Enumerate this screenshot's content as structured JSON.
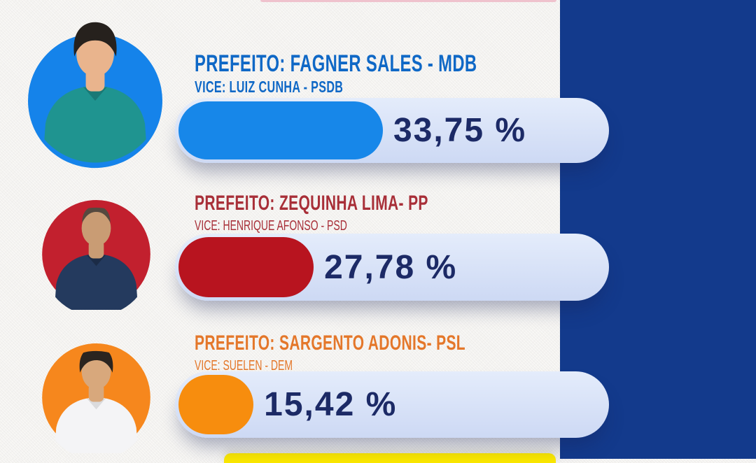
{
  "layout_colors": {
    "background": "#f3f2ef",
    "accent_band": "#133a8c",
    "top_strip": "#efc2cd",
    "bottom_banner": "#fbe800",
    "bar_track": "#d5e0f7",
    "percent_text": "#1c2a66"
  },
  "candidates": [
    {
      "title": "PREFEITO: FAGNER SALES - MDB",
      "vice": "VICE: LUIZ CUNHA - PSDB",
      "percent_label": "33,75 %",
      "percent_value": 33.75,
      "bar_color": "#1787e9",
      "title_color": "#0f68c6",
      "circle_color": "#1583ea",
      "shirt_color": "#1f9490",
      "hair_color": "#26211d",
      "skin_color": "#e9b48d"
    },
    {
      "title": "PREFEITO: ZEQUINHA LIMA- PP",
      "vice": "VICE: HENRIQUE AFONSO - PSD",
      "percent_label": "27,78 %",
      "percent_value": 27.78,
      "bar_color": "#b8141f",
      "title_color": "#a82f38",
      "circle_color": "#c2202e",
      "shirt_color": "#243a5e",
      "hair_color": "#55493f",
      "skin_color": "#c99c74"
    },
    {
      "title": "PREFEITO: SARGENTO ADONIS- PSL",
      "vice": "VICE: SUELEN - DEM",
      "percent_label": "15,42 %",
      "percent_value": 15.42,
      "bar_color": "#f78d0e",
      "title_color": "#e4772a",
      "circle_color": "#f6871d",
      "shirt_color": "#f4f4f6",
      "hair_color": "#2a241f",
      "skin_color": "#d8a87c"
    }
  ],
  "chart_data": {
    "type": "bar",
    "orientation": "horizontal",
    "title": "",
    "categories": [
      "PREFEITO: FAGNER SALES - MDB (VICE: LUIZ CUNHA - PSDB)",
      "PREFEITO: ZEQUINHA LIMA- PP (VICE: HENRIQUE AFONSO - PSD)",
      "PREFEITO: SARGENTO ADONIS- PSL (VICE: SUELEN - DEM)"
    ],
    "values": [
      33.75,
      27.78,
      15.42
    ],
    "value_labels": [
      "33,75 %",
      "27,78 %",
      "15,42 %"
    ],
    "bar_colors": [
      "#1787e9",
      "#b8141f",
      "#f78d0e"
    ],
    "grid": false,
    "legend": false,
    "axes_shown": false
  }
}
